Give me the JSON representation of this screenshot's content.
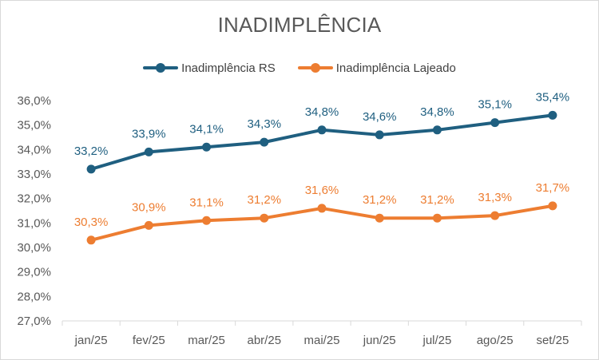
{
  "chart_data": {
    "type": "line",
    "title": "INADIMPLÊNCIA",
    "categories": [
      "jan/25",
      "fev/25",
      "mar/25",
      "abr/25",
      "mai/25",
      "jun/25",
      "jul/25",
      "ago/25",
      "set/25"
    ],
    "series": [
      {
        "name": "Inadimplência RS",
        "color": "#1f5f80",
        "values": [
          33.2,
          33.9,
          34.1,
          34.3,
          34.8,
          34.6,
          34.8,
          35.1,
          35.4
        ],
        "labels": [
          "33,2%",
          "33,9%",
          "34,1%",
          "34,3%",
          "34,8%",
          "34,6%",
          "34,8%",
          "35,1%",
          "35,4%"
        ]
      },
      {
        "name": "Inadimplência Lajeado",
        "color": "#ed7d31",
        "values": [
          30.3,
          30.9,
          31.1,
          31.2,
          31.6,
          31.2,
          31.2,
          31.3,
          31.7
        ],
        "labels": [
          "30,3%",
          "30,9%",
          "31,1%",
          "31,2%",
          "31,6%",
          "31,2%",
          "31,2%",
          "31,3%",
          "31,7%"
        ]
      }
    ],
    "ylim": [
      27,
      36
    ],
    "yticks": [
      27,
      28,
      29,
      30,
      31,
      32,
      33,
      34,
      35,
      36
    ],
    "ytick_labels": [
      "27,0%",
      "28,0%",
      "29,0%",
      "30,0%",
      "31,0%",
      "32,0%",
      "33,0%",
      "34,0%",
      "35,0%",
      "36,0%"
    ],
    "grid": false,
    "legend_position": "top"
  }
}
